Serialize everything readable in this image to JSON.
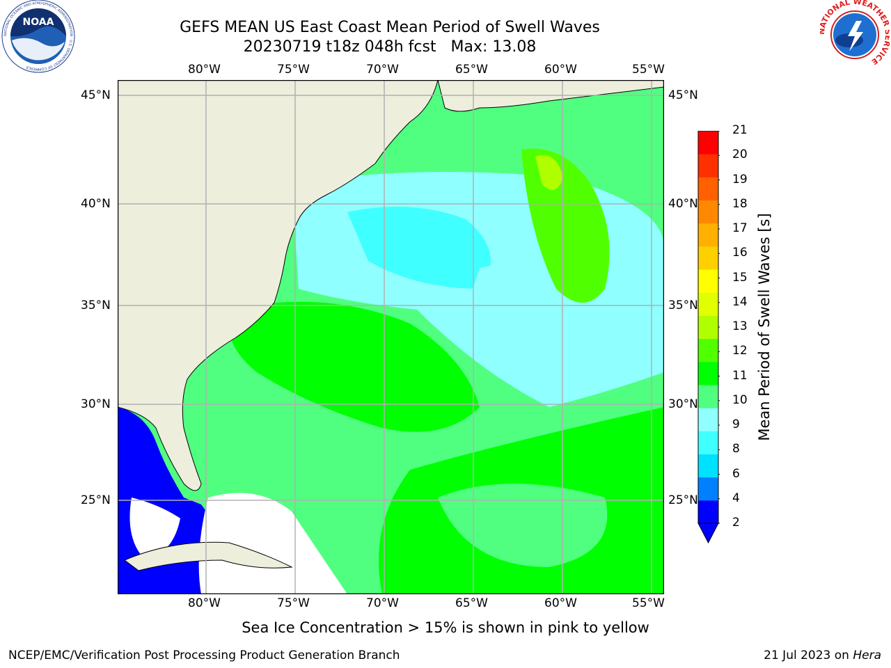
{
  "header": {
    "title_line1": "GEFS MEAN US East Coast Mean Period of Swell Waves",
    "title_line2": "20230719 t18z 048h fcst   Max: 13.08"
  },
  "logos": {
    "left": {
      "text": "NOAA",
      "ring_text": "NATIONAL OCEANIC AND ATMOSPHERIC ADMINISTRATION · U.S. DEPARTMENT OF COMMERCE",
      "icon": "noaa-logo"
    },
    "right": {
      "ring_text": "NATIONAL WEATHER SERVICE",
      "icon": "nws-logo"
    }
  },
  "map": {
    "lon_labels": [
      "80°W",
      "75°W",
      "70°W",
      "65°W",
      "60°W",
      "55°W"
    ],
    "lat_labels": [
      "45°N",
      "40°N",
      "35°N",
      "30°N",
      "25°N"
    ],
    "land_color": "#eeeedd",
    "grid_color": "#b0b0b0"
  },
  "colorbar": {
    "label": "Mean Period of Swell Waves [s]",
    "ticks": [
      "21",
      "20",
      "19",
      "18",
      "17",
      "16",
      "15",
      "14",
      "13",
      "12",
      "11",
      "10",
      "9",
      "8",
      "6",
      "4",
      "2"
    ],
    "colors": [
      "#0000ff",
      "#0080ff",
      "#00e0ff",
      "#40ffff",
      "#90ffff",
      "#50ff80",
      "#00ff00",
      "#50ff00",
      "#b0ff00",
      "#e0ff00",
      "#ffff00",
      "#ffd000",
      "#ffb000",
      "#ff8800",
      "#ff6000",
      "#ff3000",
      "#ff0000"
    ]
  },
  "notes": {
    "sea_ice": "Sea Ice Concentration > 15% is shown in pink to yellow"
  },
  "footer": {
    "left": "NCEP/EMC/Verification Post Processing Product Generation Branch",
    "right_date": "21 Jul 2023 on ",
    "right_machine": "Hera"
  }
}
